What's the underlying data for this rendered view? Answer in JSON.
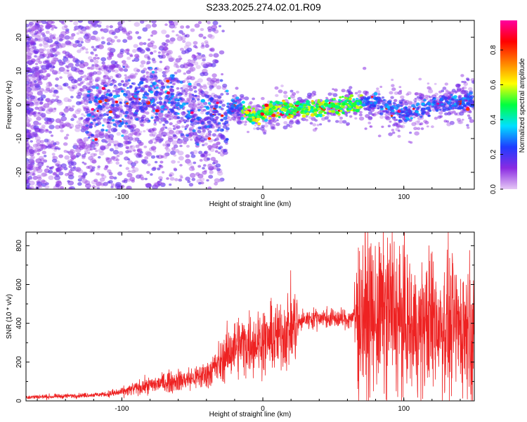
{
  "title": "S233.2025.274.02.01.R09",
  "chart_data": [
    {
      "type": "heatmap",
      "xlabel": "Height of straight line (km)",
      "ylabel": "Frequency (Hz)",
      "xlim": [
        -168,
        150
      ],
      "ylim": [
        -25,
        25
      ],
      "x_ticks": [
        -100,
        0,
        100
      ],
      "y_ticks": [
        -20,
        -10,
        0,
        10,
        20
      ],
      "colorbar": {
        "label": "Normalized spectral amplitude",
        "range": [
          0,
          0.97
        ],
        "ticks": [
          0.0,
          0.2,
          0.4,
          0.6,
          0.8
        ],
        "colormap": [
          "#e6c8f5",
          "#8a2be2",
          "#1e3cff",
          "#00e0ff",
          "#00ff40",
          "#ffff00",
          "#ff8000",
          "#ff0000",
          "#ff00a0"
        ]
      },
      "ridge_center": [
        {
          "x": -120,
          "y": -2
        },
        {
          "x": -100,
          "y": 0
        },
        {
          "x": -80,
          "y": 2
        },
        {
          "x": -60,
          "y": 1
        },
        {
          "x": -45,
          "y": -4
        },
        {
          "x": -30,
          "y": -3
        },
        {
          "x": -20,
          "y": 0
        },
        {
          "x": -5,
          "y": -4
        },
        {
          "x": 10,
          "y": -1
        },
        {
          "x": 30,
          "y": -1
        },
        {
          "x": 60,
          "y": 0
        },
        {
          "x": 80,
          "y": 1
        },
        {
          "x": 100,
          "y": -3
        },
        {
          "x": 120,
          "y": 0
        },
        {
          "x": 145,
          "y": 1
        }
      ]
    },
    {
      "type": "line",
      "xlabel": "Height of straight line (km)",
      "ylabel": "SNR (10 * v/v)",
      "xlim": [
        -168,
        150
      ],
      "ylim": [
        0,
        870
      ],
      "x_ticks": [
        -100,
        0,
        100
      ],
      "y_ticks": [
        0,
        200,
        400,
        600,
        800
      ],
      "color": "#ee2222",
      "series": [
        {
          "x": [
            -168,
            -150,
            -130,
            -110,
            -100,
            -90,
            -80,
            -70,
            -60,
            -50,
            -40,
            -30,
            -20,
            -10,
            0,
            10,
            20,
            30,
            40,
            50,
            60,
            70,
            80,
            90,
            100,
            110,
            120,
            130,
            140,
            150
          ],
          "y": [
            20,
            22,
            28,
            35,
            45,
            65,
            80,
            95,
            105,
            115,
            135,
            200,
            280,
            300,
            310,
            330,
            380,
            420,
            430,
            425,
            420,
            450,
            420,
            480,
            400,
            360,
            420,
            390,
            380,
            400
          ]
        }
      ]
    }
  ]
}
